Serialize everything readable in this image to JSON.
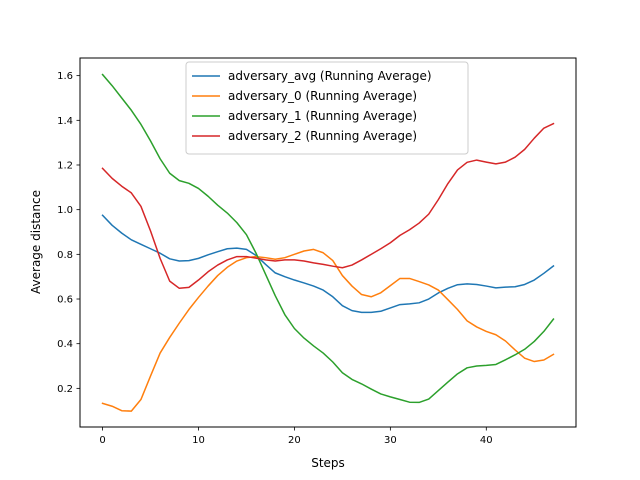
{
  "chart_data": {
    "type": "line",
    "xlabel": "Steps",
    "ylabel": "Average distance",
    "xlim": [
      -2.35,
      49.35
    ],
    "ylim": [
      0.027,
      1.679
    ],
    "xticks": [
      0,
      10,
      20,
      30,
      40
    ],
    "yticks": [
      0.2,
      0.4,
      0.6,
      0.8,
      1.0,
      1.2,
      1.4,
      1.6
    ],
    "xtick_labels": [
      "0",
      "10",
      "20",
      "30",
      "40"
    ],
    "ytick_labels": [
      "0.2",
      "0.4",
      "0.6",
      "0.8",
      "1.0",
      "1.2",
      "1.4",
      "1.6"
    ],
    "grid": false,
    "legend_position": "upper-center",
    "x": [
      0,
      1,
      2,
      3,
      4,
      5,
      6,
      7,
      8,
      9,
      10,
      11,
      12,
      13,
      14,
      15,
      16,
      17,
      18,
      19,
      20,
      21,
      22,
      23,
      24,
      25,
      26,
      27,
      28,
      29,
      30,
      31,
      32,
      33,
      34,
      35,
      36,
      37,
      38,
      39,
      40,
      41,
      42,
      43,
      44,
      45,
      46,
      47
    ],
    "series": [
      {
        "name": "adversary_avg (Running Average)",
        "color": "#1f77b4",
        "values": [
          0.975,
          0.93,
          0.895,
          0.865,
          0.845,
          0.825,
          0.805,
          0.78,
          0.77,
          0.772,
          0.782,
          0.798,
          0.812,
          0.825,
          0.828,
          0.822,
          0.795,
          0.755,
          0.717,
          0.7,
          0.685,
          0.672,
          0.658,
          0.64,
          0.61,
          0.57,
          0.548,
          0.54,
          0.54,
          0.545,
          0.56,
          0.575,
          0.578,
          0.583,
          0.6,
          0.627,
          0.648,
          0.664,
          0.668,
          0.665,
          0.658,
          0.65,
          0.653,
          0.655,
          0.665,
          0.685,
          0.715,
          0.748
        ]
      },
      {
        "name": "adversary_0 (Running Average)",
        "color": "#ff7f0e",
        "values": [
          0.133,
          0.12,
          0.1,
          0.098,
          0.15,
          0.255,
          0.358,
          0.428,
          0.492,
          0.553,
          0.607,
          0.658,
          0.705,
          0.742,
          0.77,
          0.785,
          0.79,
          0.785,
          0.778,
          0.785,
          0.8,
          0.815,
          0.822,
          0.807,
          0.772,
          0.705,
          0.658,
          0.62,
          0.61,
          0.628,
          0.66,
          0.692,
          0.692,
          0.678,
          0.663,
          0.64,
          0.597,
          0.553,
          0.502,
          0.475,
          0.455,
          0.44,
          0.412,
          0.372,
          0.335,
          0.32,
          0.327,
          0.352
        ]
      },
      {
        "name": "adversary_1 (Running Average)",
        "color": "#2ca02c",
        "values": [
          1.605,
          1.555,
          1.5,
          1.445,
          1.382,
          1.308,
          1.228,
          1.163,
          1.13,
          1.118,
          1.095,
          1.06,
          1.02,
          0.985,
          0.942,
          0.888,
          0.805,
          0.71,
          0.615,
          0.53,
          0.468,
          0.425,
          0.39,
          0.358,
          0.318,
          0.27,
          0.24,
          0.22,
          0.197,
          0.175,
          0.162,
          0.15,
          0.138,
          0.137,
          0.152,
          0.19,
          0.228,
          0.265,
          0.292,
          0.3,
          0.303,
          0.307,
          0.328,
          0.35,
          0.375,
          0.41,
          0.455,
          0.51
        ]
      },
      {
        "name": "adversary_2 (Running Average)",
        "color": "#d62728",
        "values": [
          1.185,
          1.14,
          1.105,
          1.075,
          1.015,
          0.905,
          0.782,
          0.68,
          0.648,
          0.652,
          0.685,
          0.722,
          0.752,
          0.775,
          0.79,
          0.79,
          0.783,
          0.775,
          0.77,
          0.775,
          0.775,
          0.77,
          0.762,
          0.755,
          0.747,
          0.74,
          0.752,
          0.775,
          0.8,
          0.825,
          0.852,
          0.885,
          0.91,
          0.94,
          0.98,
          1.045,
          1.117,
          1.178,
          1.212,
          1.222,
          1.213,
          1.205,
          1.213,
          1.235,
          1.27,
          1.32,
          1.365,
          1.385
        ]
      }
    ]
  }
}
